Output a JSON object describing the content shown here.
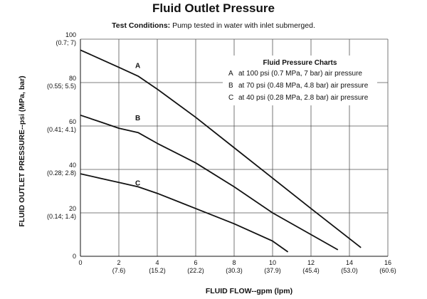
{
  "title": "Fluid Outlet Pressure",
  "conditions": {
    "label": "Test Conditions:",
    "text": "Pump tested in water with inlet submerged."
  },
  "legend": {
    "title": "Fluid Pressure Charts",
    "entries": [
      {
        "key": "A",
        "text": "at 100 psi (0.7 MPa, 7 bar) air pressure"
      },
      {
        "key": "B",
        "text": "at 70 psi (0.48 MPa, 4.8 bar) air pressure"
      },
      {
        "key": "C",
        "text": "at 40 psi (0.28 MPa, 2.8 bar) air pressure"
      }
    ]
  },
  "chart_data": {
    "type": "line",
    "title": "Fluid Outlet Pressure",
    "xlabel": "FLUID FLOW--gpm (lpm)",
    "ylabel": "FLUID OUTLET PRESSURE--psi (MPa, bar)",
    "xlim": [
      0,
      16
    ],
    "ylim": [
      0,
      100
    ],
    "grid": true,
    "legend_position": "top-right",
    "x_ticks": [
      {
        "value": 0,
        "label": "0",
        "sub": ""
      },
      {
        "value": 2,
        "label": "2",
        "sub": "(7.6)"
      },
      {
        "value": 4,
        "label": "4",
        "sub": "(15.2)"
      },
      {
        "value": 6,
        "label": "6",
        "sub": "(22.2)"
      },
      {
        "value": 8,
        "label": "8",
        "sub": "(30.3)"
      },
      {
        "value": 10,
        "label": "10",
        "sub": "(37.9)"
      },
      {
        "value": 12,
        "label": "12",
        "sub": "(45.4)"
      },
      {
        "value": 14,
        "label": "14",
        "sub": "(53.0)"
      },
      {
        "value": 16,
        "label": "16",
        "sub": "(60.6)"
      }
    ],
    "y_ticks": [
      {
        "value": 0,
        "label": "0",
        "sub": ""
      },
      {
        "value": 20,
        "label": "20",
        "sub": "(0.14; 1.4)"
      },
      {
        "value": 40,
        "label": "40",
        "sub": "(0.28; 2.8)"
      },
      {
        "value": 60,
        "label": "60",
        "sub": "(0.41; 4.1)"
      },
      {
        "value": 80,
        "label": "80",
        "sub": "(0.55; 5.5)"
      },
      {
        "value": 100,
        "label": "100",
        "sub": "(0.7; 7)"
      }
    ],
    "series": [
      {
        "name": "A",
        "label_at": [
          3,
          88
        ],
        "x": [
          0,
          1,
          2,
          3,
          4,
          6,
          8,
          10,
          12,
          14.6
        ],
        "y": [
          95,
          91,
          87,
          83,
          77,
          64,
          50,
          36,
          22,
          4
        ]
      },
      {
        "name": "B",
        "label_at": [
          3,
          64
        ],
        "x": [
          0,
          1,
          2,
          3,
          4,
          6,
          8,
          10,
          12,
          13.4
        ],
        "y": [
          65,
          62,
          59,
          57,
          52,
          43,
          32,
          20,
          10,
          3
        ]
      },
      {
        "name": "C",
        "label_at": [
          3,
          34
        ],
        "x": [
          0,
          1,
          2,
          3,
          4,
          6,
          8,
          10,
          10.8
        ],
        "y": [
          38,
          36,
          34,
          32,
          29,
          22,
          15,
          7,
          2
        ]
      }
    ]
  }
}
